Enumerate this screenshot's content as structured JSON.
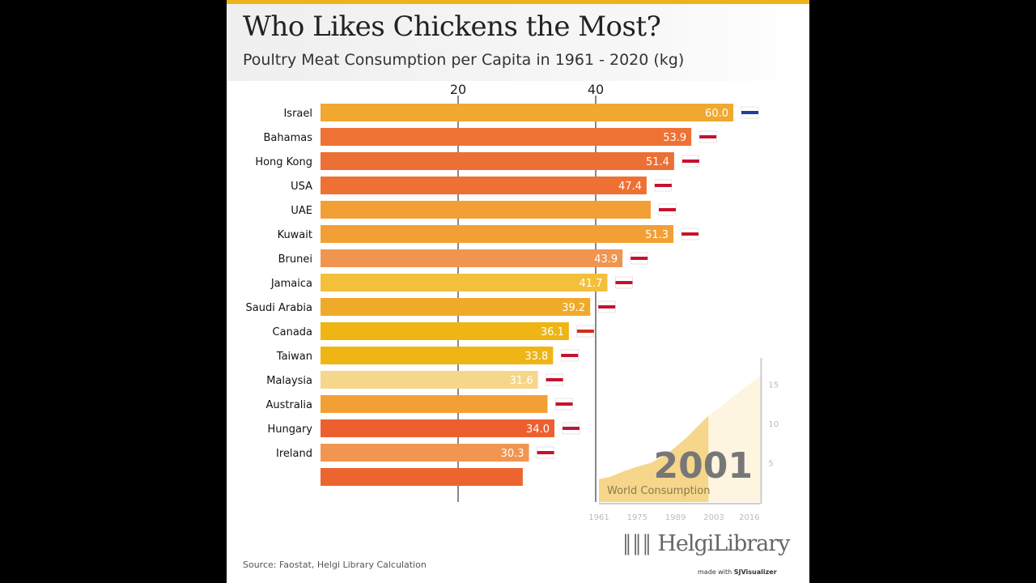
{
  "title": "Who Likes Chickens the Most?",
  "subtitle": "Poultry Meat Consumption per Capita in 1961 - 2020 (kg)",
  "source": "Source: Faostat, Helgi Library Calculation",
  "logo": "HelgiLibrary",
  "made_with": "made with",
  "made_with_brand": "SJVisualizer",
  "chart_data": [
    {
      "type": "bar",
      "orientation": "horizontal",
      "year": "2001",
      "x_ticks": [
        20,
        40
      ],
      "grid": true,
      "bars": [
        {
          "name": "Israel",
          "value": 60.0,
          "label": "60.0",
          "color": "#f0a830",
          "flag": "israel-flag"
        },
        {
          "name": "Bahamas",
          "value": 53.9,
          "label": "53.9",
          "color": "#ee7233",
          "flag": "bahamas-flag"
        },
        {
          "name": "Hong Kong",
          "value": 51.4,
          "label": "51.4",
          "color": "#ec6f35",
          "flag": "hong-kong-flag"
        },
        {
          "name": "USA",
          "value": 47.4,
          "label": "47.4",
          "color": "#ee7033",
          "flag": "usa-flag"
        },
        {
          "name": "UAE",
          "value": null,
          "label": "",
          "color": "#f2a035",
          "flag": "uae-flag"
        },
        {
          "name": "Kuwait",
          "value": 51.3,
          "label": "51.3",
          "color": "#f2a035",
          "flag": "kuwait-flag"
        },
        {
          "name": "Brunei",
          "value": 43.9,
          "label": "43.9",
          "color": "#f09550",
          "flag": "brunei-flag"
        },
        {
          "name": "Jamaica",
          "value": 41.7,
          "label": "41.7",
          "color": "#f2c03a",
          "flag": "jamaica-flag"
        },
        {
          "name": "Saudi Arabia",
          "value": 39.2,
          "label": "39.2",
          "color": "#f0aa2a",
          "flag": "saudi-arabia-flag"
        },
        {
          "name": "Canada",
          "value": 36.1,
          "label": "36.1",
          "color": "#eeb515",
          "flag": "canada-flag"
        },
        {
          "name": "Taiwan",
          "value": 33.8,
          "label": "33.8",
          "color": "#eeb515",
          "flag": "taiwan-flag"
        },
        {
          "name": "Malaysia",
          "value": 31.6,
          "label": "31.6",
          "color": "#f5d68a",
          "flag": "malaysia-flag"
        },
        {
          "name": "Australia",
          "value": null,
          "label": "",
          "color": "#f2a035",
          "flag": "australia-flag"
        },
        {
          "name": "Hungary",
          "value": 34.0,
          "label": "34.0",
          "color": "#ec6030",
          "flag": "hungary-flag"
        },
        {
          "name": "Ireland",
          "value": 30.3,
          "label": "30.3",
          "color": "#f29550",
          "flag": "ireland-flag"
        },
        {
          "name": "",
          "value": 29.4,
          "label": "",
          "color": "#ec6530",
          "flag": ""
        }
      ]
    },
    {
      "type": "area",
      "title": "World Consumption",
      "current_year": "2001",
      "x_ticks": [
        "1961",
        "1975",
        "1989",
        "2003",
        "2016"
      ],
      "y_ticks": [
        "5",
        "10",
        "15"
      ],
      "xlim": [
        1961,
        2020
      ],
      "ylim": [
        0,
        16
      ],
      "x": [
        1961,
        1965,
        1970,
        1975,
        1980,
        1985,
        1989,
        1993,
        1997,
        2001,
        2005,
        2010,
        2016,
        2020
      ],
      "y": [
        2.9,
        3.2,
        3.9,
        4.5,
        5.0,
        5.9,
        7.0,
        8.2,
        9.6,
        11.0,
        12.0,
        13.4,
        15.0,
        16.0
      ],
      "filled_color": "#f5d68a",
      "future_color": "#fdf5e0"
    }
  ]
}
